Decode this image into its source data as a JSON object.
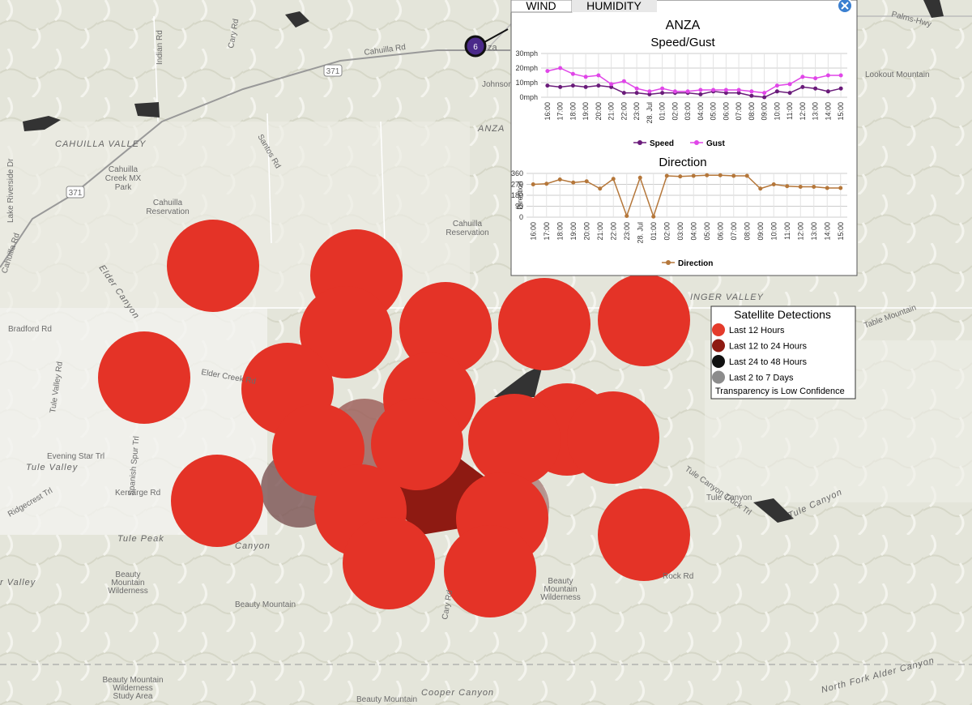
{
  "marker_label": "6",
  "tabs": [
    "WIND",
    "HUMIDITY"
  ],
  "popup": {
    "title": "ANZA"
  },
  "chart_data": [
    {
      "type": "line",
      "title": "Speed/Gust",
      "categories": [
        "16:00",
        "17:00",
        "18:00",
        "19:00",
        "20:00",
        "21:00",
        "22:00",
        "23:00",
        "28. Jul",
        "01:00",
        "02:00",
        "03:00",
        "04:00",
        "05:00",
        "06:00",
        "07:00",
        "08:00",
        "09:00",
        "10:00",
        "11:00",
        "12:00",
        "13:00",
        "14:00",
        "15:00"
      ],
      "series": [
        {
          "name": "Speed",
          "color": "#6a1b7a",
          "values": [
            8,
            7,
            8,
            7,
            8,
            7,
            3,
            3,
            2,
            3,
            3,
            3,
            2,
            4,
            3,
            3,
            1,
            0,
            4,
            3,
            7,
            6,
            4,
            6
          ]
        },
        {
          "name": "Gust",
          "color": "#e046e8",
          "values": [
            18,
            20,
            16,
            14,
            15,
            9,
            11,
            6,
            4,
            6,
            4,
            4,
            5,
            5,
            5,
            5,
            4,
            3,
            8,
            9,
            14,
            13,
            15,
            15
          ]
        }
      ],
      "ylim": [
        0,
        30
      ],
      "yticks": [
        {
          "value": 0,
          "label": "0mph"
        },
        {
          "value": 10,
          "label": "10mph"
        },
        {
          "value": 20,
          "label": "20mph"
        },
        {
          "value": 30,
          "label": "30mph"
        }
      ],
      "grid": true
    },
    {
      "type": "line",
      "title": "Direction",
      "y_label": "Direction",
      "categories": [
        "16:00",
        "17:00",
        "18:00",
        "19:00",
        "20:00",
        "21:00",
        "22:00",
        "23:00",
        "28. Jul",
        "01:00",
        "02:00",
        "03:00",
        "04:00",
        "05:00",
        "06:00",
        "07:00",
        "08:00",
        "09:00",
        "10:00",
        "11:00",
        "12:00",
        "13:00",
        "14:00",
        "15:00"
      ],
      "series": [
        {
          "name": "Direction",
          "color": "#b5773a",
          "values": [
            270,
            275,
            310,
            285,
            295,
            235,
            315,
            10,
            325,
            5,
            340,
            335,
            340,
            345,
            345,
            340,
            340,
            235,
            270,
            255,
            250,
            250,
            240,
            240
          ]
        }
      ],
      "ylim": [
        0,
        360
      ],
      "yticks": [
        0,
        90,
        180,
        270,
        360
      ],
      "grid": true
    }
  ],
  "legend": {
    "title": "Satellite Detections",
    "items": [
      {
        "label": "Last 12 Hours",
        "color": "#e43b2b"
      },
      {
        "label": "Last 12 to 24 Hours",
        "color": "#8e1a12"
      },
      {
        "label": "Last 24 to 48 Hours",
        "color": "#111111"
      },
      {
        "label": "Last 2 to 7 Days",
        "color": "#8c8c8c"
      }
    ],
    "note": "Transparency is Low Confidence"
  },
  "map_labels": [
    "Cahuilla Rd",
    "Indian Rd",
    "Cary Rd",
    "371",
    "Johnson Rd",
    "ANZA",
    "CAHUILLA VALLEY",
    "Santos Rd",
    [
      "Cahuilla",
      "Creek MX",
      "Park"
    ],
    [
      "Cahuilla",
      "Reservation"
    ],
    [
      "Cahuilla",
      "Reservation"
    ],
    "371",
    "Lake Riverside Dr",
    "Cahuilla Rd",
    "Elder Canyon",
    "Bradford Rd",
    "Elder Creek Rd",
    "Tule Valley Rd",
    "Spanish Spur Trl",
    "Evening Star Trl",
    "Tule Valley",
    "Kersarge Rd",
    "Ridgecrest Trl",
    "Tule Peak",
    [
      "Beauty",
      "Mountain",
      "Wilderness"
    ],
    "Beauty Mountain",
    [
      "Beauty",
      "Mountain",
      "Wilderness"
    ],
    "Rock Rd",
    [
      "Beauty Mountain",
      "Wilderness",
      "Study Area"
    ],
    "Cooper Canyon",
    "Beauty Mountain",
    "Lookout Mountain",
    "Table Mountain",
    "INGER VALLEY",
    "Tule Canyon",
    "Tule Canyon Truck Trl",
    "Tule Canyon",
    "North Fork Alder Canyon",
    "Palms-Hwy",
    "Cary Rd",
    "za",
    "r Valley",
    "Canyon"
  ]
}
